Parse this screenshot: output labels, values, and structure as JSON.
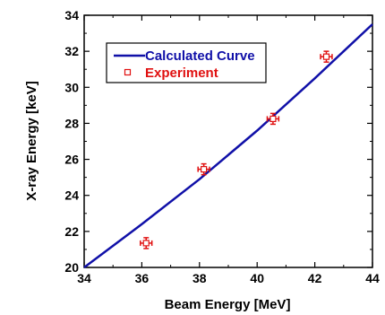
{
  "chart_data": {
    "type": "scatter",
    "xlabel": "Beam Energy [MeV]",
    "ylabel": "X-ray Energy [keV]",
    "xlim": [
      34,
      44
    ],
    "ylim": [
      20,
      34
    ],
    "xticks": [
      34,
      36,
      38,
      40,
      42,
      44
    ],
    "yticks": [
      20,
      22,
      24,
      26,
      28,
      30,
      32,
      34
    ],
    "grid": false,
    "legend_position": "top-left",
    "series": [
      {
        "name": "Calculated Curve",
        "kind": "line",
        "color": "#1010a8",
        "x": [
          34,
          36,
          38,
          40,
          42,
          44
        ],
        "y": [
          20.0,
          22.4,
          24.9,
          27.6,
          30.5,
          33.5
        ]
      },
      {
        "name": "Experiment",
        "kind": "points_with_error",
        "color": "#e01010",
        "x": [
          36.15,
          38.15,
          40.55,
          42.4
        ],
        "y": [
          21.35,
          25.45,
          28.25,
          31.7
        ],
        "x_err": [
          0.2,
          0.2,
          0.2,
          0.2
        ],
        "y_err": [
          0.3,
          0.3,
          0.3,
          0.3
        ]
      }
    ]
  }
}
